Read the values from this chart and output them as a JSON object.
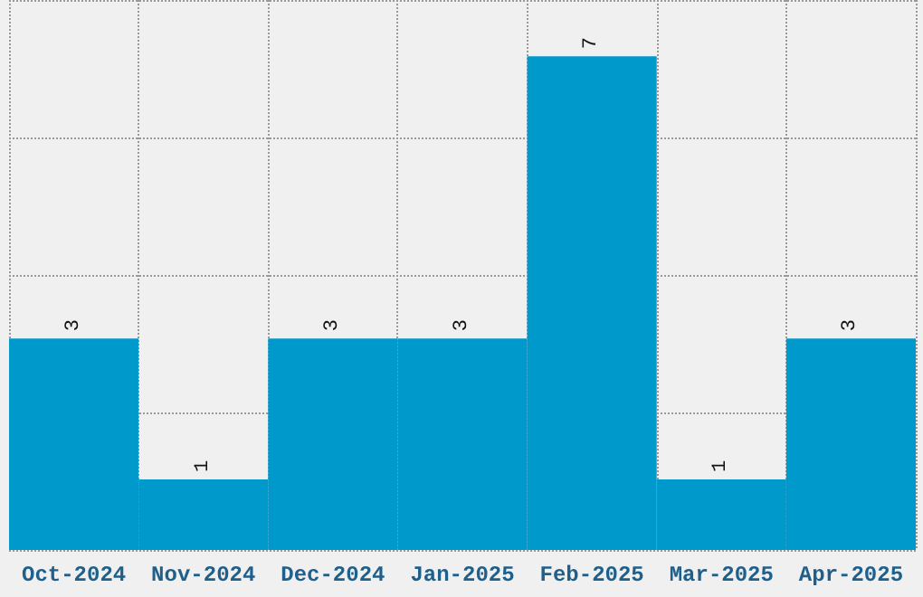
{
  "chart_data": {
    "type": "bar",
    "categories": [
      "Oct-2024",
      "Nov-2024",
      "Dec-2024",
      "Jan-2025",
      "Feb-2025",
      "Mar-2025",
      "Apr-2025"
    ],
    "values": [
      3,
      1,
      3,
      3,
      7,
      1,
      3
    ],
    "color": "#0099cc",
    "data_labels": true,
    "grid": true,
    "tick_labels": "x",
    "ylim": [
      0,
      7.8
    ],
    "yticks": [
      {
        "value": 0,
        "label": null
      },
      {
        "value": 1.95,
        "label": null
      },
      {
        "value": 3.9,
        "label": null
      },
      {
        "value": 5.85,
        "label": null
      },
      {
        "value": 7.8,
        "label": null
      }
    ]
  }
}
